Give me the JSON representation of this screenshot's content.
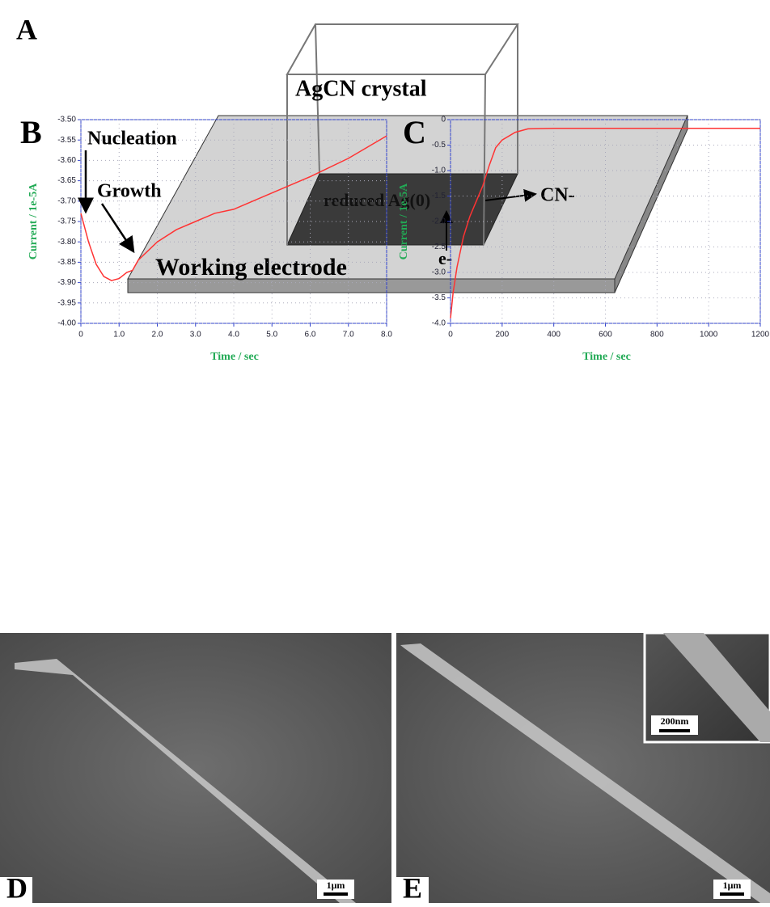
{
  "diagram": {
    "label": "A",
    "crystal": "AgCN crystal",
    "reduced": "reduced Ag(0)",
    "anion": "CN-",
    "electron": "e-",
    "electrode": "Working electrode"
  },
  "chart_data": [
    {
      "type": "line",
      "label": "B",
      "xlabel": "Time / sec",
      "ylabel": "Current / 1e-5A",
      "annotations": [
        "Nucleation",
        "Growth"
      ],
      "color": "#ff3333",
      "grid": true,
      "x": [
        0,
        0.2,
        0.4,
        0.6,
        0.8,
        1.0,
        1.2,
        1.35,
        1.5,
        2.0,
        2.5,
        3.0,
        3.5,
        4.0,
        5.0,
        6.0,
        7.0,
        8.0
      ],
      "values": [
        -3.73,
        -3.8,
        -3.855,
        -3.885,
        -3.895,
        -3.89,
        -3.875,
        -3.87,
        -3.845,
        -3.8,
        -3.77,
        -3.75,
        -3.73,
        -3.72,
        -3.68,
        -3.64,
        -3.595,
        -3.54
      ],
      "xlim": [
        0,
        8
      ],
      "ylim": [
        -4,
        -3.5
      ],
      "xticks": [
        0,
        {
          "value": 1,
          "label": "1.0"
        },
        {
          "value": 2,
          "label": "2.0"
        },
        {
          "value": 3,
          "label": "3.0"
        },
        {
          "value": 4,
          "label": "4.0"
        },
        {
          "value": 5,
          "label": "5.0"
        },
        {
          "value": 6,
          "label": "6.0"
        },
        {
          "value": 7,
          "label": "7.0"
        },
        {
          "value": 8,
          "label": "8.0"
        }
      ],
      "yticks": [
        {
          "value": -3.5,
          "label": "-3.50"
        },
        -3.55,
        {
          "value": -3.6,
          "label": "-3.60"
        },
        -3.65,
        {
          "value": -3.7,
          "label": "-3.70"
        },
        -3.75,
        {
          "value": -3.8,
          "label": "-3.80"
        },
        -3.85,
        {
          "value": -3.9,
          "label": "-3.90"
        },
        -3.95,
        {
          "value": -4,
          "label": "-4.00"
        }
      ]
    },
    {
      "type": "line",
      "label": "C",
      "xlabel": "Time / sec",
      "ylabel": "Current / 1e-5A",
      "color": "#ff3333",
      "grid": true,
      "x": [
        0,
        10,
        25,
        50,
        75,
        100,
        125,
        150,
        175,
        200,
        250,
        300,
        400,
        1200
      ],
      "values": [
        -3.9,
        -3.4,
        -2.9,
        -2.3,
        -1.9,
        -1.6,
        -1.3,
        -0.9,
        -0.55,
        -0.4,
        -0.25,
        -0.18,
        -0.17,
        -0.17
      ],
      "xlim": [
        0,
        1200
      ],
      "ylim": [
        -4,
        0
      ],
      "xticks": [
        0,
        200,
        400,
        600,
        800,
        1000,
        1200
      ],
      "yticks": [
        0,
        -0.5,
        {
          "value": -1,
          "label": "-1.0"
        },
        -1.5,
        {
          "value": -2,
          "label": "-2.0"
        },
        -2.5,
        {
          "value": -3,
          "label": "-3.0"
        },
        -3.5,
        {
          "value": -4,
          "label": "-4.0"
        }
      ]
    }
  ],
  "images": [
    {
      "label": "D",
      "scale": "1μm"
    },
    {
      "label": "E",
      "scale": "1μm",
      "inset_scale": "200nm"
    }
  ]
}
